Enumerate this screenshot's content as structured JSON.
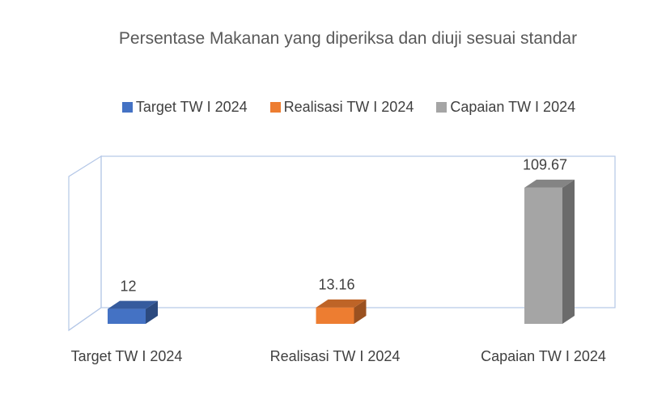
{
  "chart_data": {
    "type": "bar3d",
    "title": "Persentase Makanan yang diperiksa dan diuji sesuai standar",
    "categories": [
      "Target TW I 2024",
      "Realisasi TW I 2024",
      "Capaian TW I 2024"
    ],
    "series": [
      {
        "name": "Target TW I 2024",
        "color": "#4472c4",
        "values": [
          12,
          null,
          null
        ]
      },
      {
        "name": "Realisasi TW I 2024",
        "color": "#ed7d31",
        "values": [
          null,
          13.16,
          null
        ]
      },
      {
        "name": "Capaian TW I 2024",
        "color": "#a5a5a5",
        "values": [
          null,
          null,
          109.67
        ]
      }
    ],
    "ylim": [
      0,
      120
    ],
    "legend": "top"
  }
}
